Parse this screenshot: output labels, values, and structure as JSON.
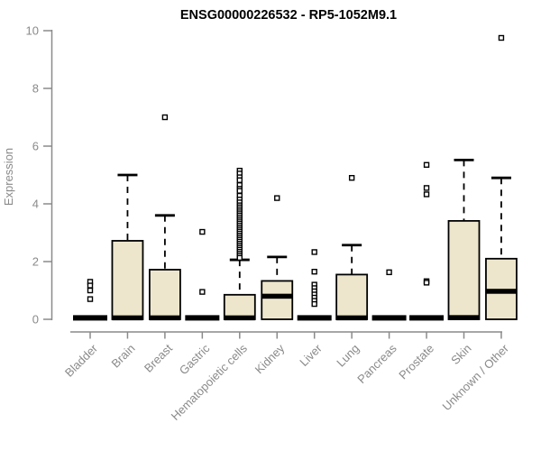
{
  "chart_data": {
    "type": "boxplot",
    "title": "ENSG00000226532 - RP5-1052M9.1",
    "ylabel": "Expression",
    "ylim": [
      0,
      10
    ],
    "yticks": [
      0,
      2,
      4,
      6,
      8,
      10
    ],
    "grid": false,
    "categories": [
      "Bladder",
      "Brain",
      "Breast",
      "Gastric",
      "Hematopoietic cells",
      "Kidney",
      "Liver",
      "Lung",
      "Pancreas",
      "Prostate",
      "Skin",
      "Unknown / Other"
    ],
    "boxes": [
      {
        "category": "Bladder",
        "q1": 0,
        "median": 0.05,
        "q3": 0.08,
        "whisker_low": 0,
        "whisker_high": 0.08,
        "collapsed": true,
        "outliers": [
          1.3,
          1.17,
          1.0,
          0.7
        ]
      },
      {
        "category": "Brain",
        "q1": 0,
        "median": 0.05,
        "q3": 2.72,
        "whisker_low": 0,
        "whisker_high": 5.0,
        "collapsed": false,
        "outliers": []
      },
      {
        "category": "Breast",
        "q1": 0,
        "median": 0.05,
        "q3": 1.72,
        "whisker_low": 0,
        "whisker_high": 3.6,
        "collapsed": false,
        "outliers": [
          7.0
        ]
      },
      {
        "category": "Gastric",
        "q1": 0,
        "median": 0.05,
        "q3": 0.08,
        "whisker_low": 0,
        "whisker_high": 0.08,
        "collapsed": true,
        "outliers": [
          3.03,
          0.95
        ]
      },
      {
        "category": "Hematopoietic cells",
        "q1": 0,
        "median": 0.05,
        "q3": 0.85,
        "whisker_low": 0,
        "whisker_high": 2.06,
        "collapsed": false,
        "outliers": [
          5.15,
          5.05,
          4.92,
          4.82,
          4.65,
          4.52,
          4.45,
          4.28,
          4.15,
          4.05,
          3.95,
          3.88,
          3.81,
          3.74,
          3.67,
          3.6,
          3.53,
          3.46,
          3.39,
          3.32,
          3.25,
          3.18,
          3.11,
          3.04,
          2.97,
          2.9,
          2.83,
          2.76,
          2.69,
          2.62,
          2.55,
          2.48,
          2.41,
          2.34,
          2.27,
          2.2,
          2.13
        ]
      },
      {
        "category": "Kidney",
        "q1": 0,
        "median": 0.8,
        "q3": 1.33,
        "whisker_low": 0,
        "whisker_high": 2.16,
        "collapsed": false,
        "outliers": [
          4.2
        ]
      },
      {
        "category": "Liver",
        "q1": 0,
        "median": 0.05,
        "q3": 0.08,
        "whisker_low": 0,
        "whisker_high": 0.08,
        "collapsed": true,
        "outliers": [
          2.33,
          1.65,
          1.2,
          1.08,
          0.97,
          0.86,
          0.75,
          0.64,
          0.53
        ]
      },
      {
        "category": "Lung",
        "q1": 0,
        "median": 0.05,
        "q3": 1.55,
        "whisker_low": 0,
        "whisker_high": 2.57,
        "collapsed": false,
        "outliers": [
          4.9
        ]
      },
      {
        "category": "Pancreas",
        "q1": 0,
        "median": 0.05,
        "q3": 0.08,
        "whisker_low": 0,
        "whisker_high": 0.08,
        "collapsed": true,
        "outliers": [
          1.63
        ]
      },
      {
        "category": "Prostate",
        "q1": 0,
        "median": 0.05,
        "q3": 0.08,
        "whisker_low": 0,
        "whisker_high": 0.08,
        "collapsed": true,
        "outliers": [
          5.35,
          4.55,
          4.33,
          1.32,
          1.27
        ]
      },
      {
        "category": "Skin",
        "q1": 0,
        "median": 0.06,
        "q3": 3.41,
        "whisker_low": 0,
        "whisker_high": 5.52,
        "collapsed": false,
        "outliers": []
      },
      {
        "category": "Unknown / Other",
        "q1": 0,
        "median": 0.97,
        "q3": 2.1,
        "whisker_low": 0,
        "whisker_high": 4.9,
        "collapsed": false,
        "outliers": [
          9.75
        ]
      }
    ],
    "colors": {
      "box_fill": "#EDE6CC",
      "box_border": "#000000",
      "median": "#000000",
      "outlier_stroke": "#000000",
      "outlier_fill": "#FFFFFF",
      "axis": "#8A8A8A",
      "tick_text": "#8A8A8A",
      "title_text": "#000000",
      "background": "#FFFFFF"
    }
  }
}
